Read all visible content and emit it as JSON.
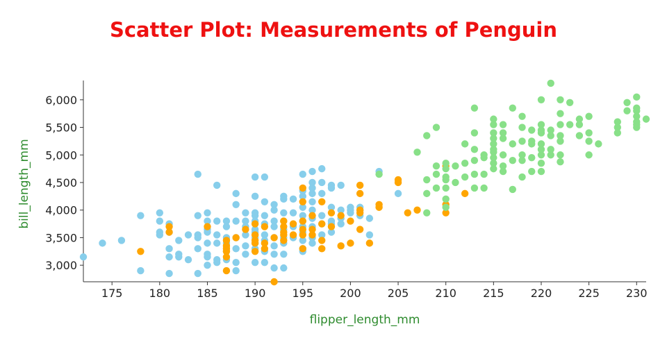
{
  "chart_data": {
    "type": "scatter",
    "title": "Scatter Plot: Measurements of Penguin",
    "xlabel": "flipper_length_mm",
    "ylabel": "bill_length_mm",
    "xlim": [
      172,
      231
    ],
    "ylim": [
      2700,
      6350
    ],
    "x_ticks": [
      175,
      180,
      185,
      190,
      195,
      200,
      205,
      210,
      215,
      220,
      225,
      230
    ],
    "y_ticks": [
      3000,
      3500,
      4000,
      4500,
      5000,
      5500,
      6000
    ],
    "grid": false,
    "colors": {
      "title": "#ee1111",
      "axis_label": "#2e8b2e",
      "axis_line": "#333333"
    },
    "series": [
      {
        "color": "#87ceeb",
        "points": [
          [
            172,
            3150
          ],
          [
            174,
            3400
          ],
          [
            176,
            3450
          ],
          [
            178,
            3900
          ],
          [
            178,
            2900
          ],
          [
            180,
            3950
          ],
          [
            180,
            3800
          ],
          [
            180,
            3600
          ],
          [
            180,
            3550
          ],
          [
            181,
            3750
          ],
          [
            181,
            3600
          ],
          [
            181,
            3300
          ],
          [
            181,
            3150
          ],
          [
            181,
            2850
          ],
          [
            182,
            3450
          ],
          [
            182,
            3200
          ],
          [
            182,
            3150
          ],
          [
            183,
            3550
          ],
          [
            183,
            3100
          ],
          [
            184,
            4650
          ],
          [
            184,
            3900
          ],
          [
            184,
            3550
          ],
          [
            184,
            3500
          ],
          [
            184,
            3300
          ],
          [
            184,
            2850
          ],
          [
            185,
            3950
          ],
          [
            185,
            3800
          ],
          [
            185,
            3650
          ],
          [
            185,
            3600
          ],
          [
            185,
            3400
          ],
          [
            185,
            3200
          ],
          [
            185,
            3150
          ],
          [
            185,
            3000
          ],
          [
            186,
            4450
          ],
          [
            186,
            3800
          ],
          [
            186,
            3550
          ],
          [
            186,
            3400
          ],
          [
            186,
            3100
          ],
          [
            186,
            3050
          ],
          [
            187,
            3800
          ],
          [
            187,
            3700
          ],
          [
            187,
            3500
          ],
          [
            187,
            3400
          ],
          [
            187,
            3250
          ],
          [
            187,
            3100
          ],
          [
            188,
            4300
          ],
          [
            188,
            4100
          ],
          [
            188,
            3800
          ],
          [
            188,
            3500
          ],
          [
            188,
            3300
          ],
          [
            188,
            3050
          ],
          [
            188,
            2900
          ],
          [
            189,
            3950
          ],
          [
            189,
            3800
          ],
          [
            189,
            3700
          ],
          [
            189,
            3550
          ],
          [
            189,
            3350
          ],
          [
            189,
            3200
          ],
          [
            190,
            4600
          ],
          [
            190,
            4250
          ],
          [
            190,
            3950
          ],
          [
            190,
            3900
          ],
          [
            190,
            3800
          ],
          [
            190,
            3650
          ],
          [
            190,
            3600
          ],
          [
            190,
            3500
          ],
          [
            190,
            3400
          ],
          [
            190,
            3300
          ],
          [
            190,
            3050
          ],
          [
            191,
            4600
          ],
          [
            191,
            4150
          ],
          [
            191,
            3900
          ],
          [
            191,
            3750
          ],
          [
            191,
            3550
          ],
          [
            191,
            3450
          ],
          [
            191,
            3250
          ],
          [
            191,
            3050
          ],
          [
            192,
            4100
          ],
          [
            192,
            4000
          ],
          [
            192,
            3800
          ],
          [
            192,
            3700
          ],
          [
            192,
            3500
          ],
          [
            192,
            3350
          ],
          [
            192,
            3200
          ],
          [
            192,
            2950
          ],
          [
            193,
            4250
          ],
          [
            193,
            4200
          ],
          [
            193,
            3950
          ],
          [
            193,
            3800
          ],
          [
            193,
            3650
          ],
          [
            193,
            3500
          ],
          [
            193,
            3400
          ],
          [
            193,
            3200
          ],
          [
            193,
            2950
          ],
          [
            194,
            4200
          ],
          [
            194,
            3950
          ],
          [
            194,
            3700
          ],
          [
            194,
            3500
          ],
          [
            195,
            4650
          ],
          [
            195,
            4350
          ],
          [
            195,
            4250
          ],
          [
            195,
            4050
          ],
          [
            195,
            3900
          ],
          [
            195,
            3800
          ],
          [
            195,
            3700
          ],
          [
            195,
            3600
          ],
          [
            195,
            3450
          ],
          [
            195,
            3300
          ],
          [
            195,
            3250
          ],
          [
            196,
            4700
          ],
          [
            196,
            4500
          ],
          [
            196,
            4400
          ],
          [
            196,
            4300
          ],
          [
            196,
            4150
          ],
          [
            196,
            4000
          ],
          [
            196,
            3850
          ],
          [
            196,
            3700
          ],
          [
            196,
            3500
          ],
          [
            196,
            3400
          ],
          [
            197,
            4750
          ],
          [
            197,
            4500
          ],
          [
            197,
            4300
          ],
          [
            197,
            3900
          ],
          [
            197,
            3750
          ],
          [
            197,
            3550
          ],
          [
            198,
            4450
          ],
          [
            198,
            4400
          ],
          [
            198,
            4050
          ],
          [
            198,
            3800
          ],
          [
            198,
            3750
          ],
          [
            198,
            3600
          ],
          [
            199,
            4450
          ],
          [
            199,
            4000
          ],
          [
            199,
            3850
          ],
          [
            199,
            3750
          ],
          [
            200,
            4050
          ],
          [
            200,
            4000
          ],
          [
            200,
            3950
          ],
          [
            201,
            4050
          ],
          [
            201,
            4000
          ],
          [
            201,
            3900
          ],
          [
            202,
            3850
          ],
          [
            202,
            3550
          ],
          [
            203,
            4700
          ],
          [
            205,
            4300
          ]
        ]
      },
      {
        "color": "#ffa500",
        "points": [
          [
            178,
            3250
          ],
          [
            181,
            3700
          ],
          [
            181,
            3600
          ],
          [
            185,
            3700
          ],
          [
            187,
            3450
          ],
          [
            187,
            3350
          ],
          [
            187,
            3300
          ],
          [
            187,
            3250
          ],
          [
            187,
            3150
          ],
          [
            187,
            2900
          ],
          [
            188,
            3500
          ],
          [
            189,
            3650
          ],
          [
            190,
            3750
          ],
          [
            190,
            3550
          ],
          [
            190,
            3450
          ],
          [
            190,
            3400
          ],
          [
            190,
            3250
          ],
          [
            191,
            3700
          ],
          [
            191,
            3400
          ],
          [
            191,
            3300
          ],
          [
            192,
            3500
          ],
          [
            192,
            2700
          ],
          [
            193,
            3800
          ],
          [
            193,
            3700
          ],
          [
            193,
            3600
          ],
          [
            193,
            3550
          ],
          [
            193,
            3450
          ],
          [
            194,
            3750
          ],
          [
            194,
            3550
          ],
          [
            195,
            4400
          ],
          [
            195,
            4150
          ],
          [
            195,
            3800
          ],
          [
            195,
            3650
          ],
          [
            195,
            3550
          ],
          [
            195,
            3300
          ],
          [
            196,
            3900
          ],
          [
            196,
            3650
          ],
          [
            196,
            3550
          ],
          [
            197,
            4150
          ],
          [
            197,
            3750
          ],
          [
            197,
            3450
          ],
          [
            197,
            3300
          ],
          [
            198,
            3950
          ],
          [
            198,
            3700
          ],
          [
            199,
            3900
          ],
          [
            199,
            3350
          ],
          [
            200,
            3800
          ],
          [
            200,
            3400
          ],
          [
            201,
            4450
          ],
          [
            201,
            4300
          ],
          [
            201,
            4000
          ],
          [
            201,
            3950
          ],
          [
            201,
            3650
          ],
          [
            202,
            3400
          ],
          [
            203,
            4100
          ],
          [
            203,
            4050
          ],
          [
            205,
            4550
          ],
          [
            205,
            4500
          ],
          [
            206,
            3950
          ],
          [
            207,
            4000
          ],
          [
            210,
            4800
          ],
          [
            210,
            4100
          ],
          [
            210,
            3950
          ],
          [
            212,
            4300
          ]
        ]
      },
      {
        "color": "#88e088",
        "points": [
          [
            203,
            4650
          ],
          [
            207,
            5050
          ],
          [
            208,
            5350
          ],
          [
            208,
            4550
          ],
          [
            208,
            4300
          ],
          [
            208,
            3950
          ],
          [
            209,
            5500
          ],
          [
            209,
            4800
          ],
          [
            209,
            4650
          ],
          [
            209,
            4400
          ],
          [
            210,
            4850
          ],
          [
            210,
            4750
          ],
          [
            210,
            4600
          ],
          [
            210,
            4550
          ],
          [
            210,
            4400
          ],
          [
            210,
            4200
          ],
          [
            210,
            4050
          ],
          [
            211,
            4800
          ],
          [
            211,
            4500
          ],
          [
            212,
            5200
          ],
          [
            212,
            4850
          ],
          [
            212,
            4600
          ],
          [
            213,
            5850
          ],
          [
            213,
            5400
          ],
          [
            213,
            5100
          ],
          [
            213,
            4900
          ],
          [
            213,
            4650
          ],
          [
            213,
            4400
          ],
          [
            214,
            5000
          ],
          [
            214,
            4950
          ],
          [
            214,
            4650
          ],
          [
            214,
            4400
          ],
          [
            215,
            5650
          ],
          [
            215,
            5550
          ],
          [
            215,
            5400
          ],
          [
            215,
            5300
          ],
          [
            215,
            5200
          ],
          [
            215,
            5100
          ],
          [
            215,
            5050
          ],
          [
            215,
            4950
          ],
          [
            215,
            4850
          ],
          [
            215,
            4750
          ],
          [
            216,
            5550
          ],
          [
            216,
            5400
          ],
          [
            216,
            5300
          ],
          [
            216,
            5000
          ],
          [
            216,
            4800
          ],
          [
            216,
            4700
          ],
          [
            217,
            5850
          ],
          [
            217,
            5200
          ],
          [
            217,
            4900
          ],
          [
            217,
            4375
          ],
          [
            218,
            5700
          ],
          [
            218,
            5500
          ],
          [
            218,
            5250
          ],
          [
            218,
            5000
          ],
          [
            218,
            4900
          ],
          [
            218,
            4600
          ],
          [
            219,
            5450
          ],
          [
            219,
            5250
          ],
          [
            219,
            5200
          ],
          [
            219,
            4950
          ],
          [
            219,
            4700
          ],
          [
            220,
            6000
          ],
          [
            220,
            5550
          ],
          [
            220,
            5450
          ],
          [
            220,
            5400
          ],
          [
            220,
            5200
          ],
          [
            220,
            5100
          ],
          [
            220,
            5000
          ],
          [
            220,
            4850
          ],
          [
            220,
            4700
          ],
          [
            221,
            6300
          ],
          [
            221,
            5450
          ],
          [
            221,
            5350
          ],
          [
            221,
            5100
          ],
          [
            221,
            5000
          ],
          [
            222,
            6000
          ],
          [
            222,
            5750
          ],
          [
            222,
            5550
          ],
          [
            222,
            5350
          ],
          [
            222,
            5250
          ],
          [
            222,
            5000
          ],
          [
            222,
            4875
          ],
          [
            223,
            5950
          ],
          [
            223,
            5550
          ],
          [
            224,
            5650
          ],
          [
            224,
            5550
          ],
          [
            224,
            5350
          ],
          [
            225,
            5700
          ],
          [
            225,
            5400
          ],
          [
            225,
            5250
          ],
          [
            225,
            5000
          ],
          [
            226,
            5200
          ],
          [
            228,
            5600
          ],
          [
            228,
            5500
          ],
          [
            228,
            5400
          ],
          [
            229,
            5950
          ],
          [
            229,
            5800
          ],
          [
            230,
            6050
          ],
          [
            230,
            5850
          ],
          [
            230,
            5800
          ],
          [
            230,
            5700
          ],
          [
            230,
            5600
          ],
          [
            230,
            5550
          ],
          [
            230,
            5500
          ],
          [
            231,
            5650
          ]
        ]
      }
    ]
  }
}
